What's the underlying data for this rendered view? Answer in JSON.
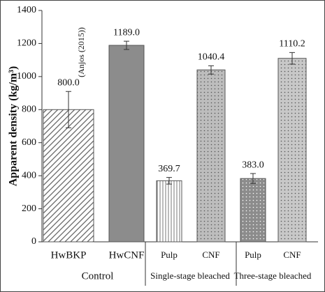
{
  "chart_data": {
    "type": "bar",
    "y_label": "Apparent density (kg/m³)",
    "categories": [
      "HwBKP",
      "HwCNF",
      "Pulp",
      "CNF",
      "Pulp",
      "CNF"
    ],
    "groups": [
      "Control",
      "Single-stage bleached",
      "Three-stage bleached"
    ],
    "values": [
      800.0,
      1189.0,
      369.7,
      1040.4,
      383.0,
      1110.2
    ],
    "value_labels": [
      "800.0",
      "1189.0",
      "369.7",
      "1040.4",
      "383.0",
      "1110.2"
    ],
    "errors": [
      110,
      25,
      20,
      25,
      30,
      35
    ],
    "colors": [
      "#ffffff",
      "#8c8c8c",
      "#ffffff",
      "#bdbdbd",
      "#8c8c8c",
      "#c8c8c8"
    ],
    "patterns": [
      "diagonal",
      "solid",
      "vertical",
      "dots",
      "dots",
      "dots"
    ],
    "annotation": "(Anjos (2015))",
    "ylim": [
      0,
      1400
    ],
    "yticks": [
      0,
      200,
      400,
      600,
      800,
      1000,
      1200,
      1400
    ]
  }
}
